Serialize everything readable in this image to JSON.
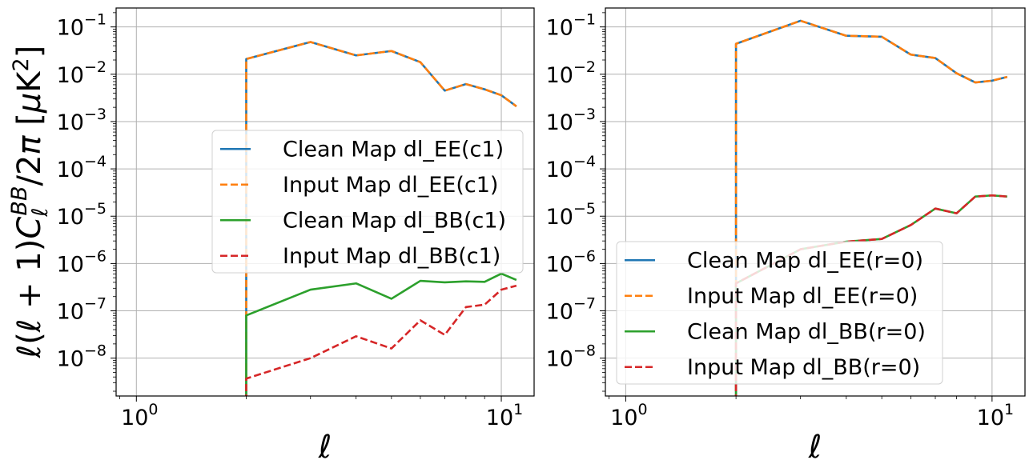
{
  "figure": {
    "ylabel": "ℓ(ℓ + 1)C_ℓ^BB/2π [μK²]"
  },
  "chart_data": [
    {
      "type": "line",
      "xscale": "log",
      "yscale": "log",
      "xlim": [
        0.88,
        12.3
      ],
      "ylim_exp": [
        -8.8,
        -0.6
      ],
      "xlabel": "ℓ",
      "ylabel": "ℓ(ℓ + 1)C_ℓ^BB/2π [μK²]",
      "grid": true,
      "legend_position": "center-right",
      "x_ticks": [
        {
          "value": 1,
          "base": "10",
          "exp": "0"
        },
        {
          "value": 10,
          "base": "10",
          "exp": "1"
        }
      ],
      "y_ticks": [
        {
          "exp_value": -1,
          "base": "10",
          "exp": "−1"
        },
        {
          "exp_value": -2,
          "base": "10",
          "exp": "−2"
        },
        {
          "exp_value": -3,
          "base": "10",
          "exp": "−3"
        },
        {
          "exp_value": -4,
          "base": "10",
          "exp": "−4"
        },
        {
          "exp_value": -5,
          "base": "10",
          "exp": "−5"
        },
        {
          "exp_value": -6,
          "base": "10",
          "exp": "−6"
        },
        {
          "exp_value": -7,
          "base": "10",
          "exp": "−7"
        },
        {
          "exp_value": -8,
          "base": "10",
          "exp": "−8"
        }
      ],
      "x": [
        2,
        3,
        4,
        5,
        6,
        7,
        8,
        9,
        10,
        11
      ],
      "series": [
        {
          "name": "Clean Map dl_EE(c1)",
          "color": "#1f77b4",
          "dash": "solid",
          "values": [
            0.021,
            0.048,
            0.025,
            0.031,
            0.018,
            0.0045,
            0.0062,
            0.0048,
            0.0036,
            0.0021
          ]
        },
        {
          "name": "Input Map dl_EE(c1)",
          "color": "#ff7f0e",
          "dash": "dashed",
          "values": [
            0.021,
            0.048,
            0.025,
            0.031,
            0.018,
            0.0045,
            0.0062,
            0.0048,
            0.0036,
            0.0021
          ]
        },
        {
          "name": "Clean Map dl_BB(c1)",
          "color": "#2ca02c",
          "dash": "solid",
          "values": [
            8e-08,
            2.8e-07,
            3.8e-07,
            1.8e-07,
            4.3e-07,
            4e-07,
            4.2e-07,
            4.1e-07,
            6.1e-07,
            4.5e-07
          ]
        },
        {
          "name": "Input Map dl_BB(c1)",
          "color": "#d62728",
          "dash": "dashed",
          "values": [
            3.7e-09,
            1e-08,
            2.9e-08,
            1.6e-08,
            6.3e-08,
            3.1e-08,
            1.2e-07,
            1.35e-07,
            2.8e-07,
            3.4e-07
          ]
        }
      ]
    },
    {
      "type": "line",
      "xscale": "log",
      "yscale": "log",
      "xlim": [
        0.88,
        12.3
      ],
      "ylim_exp": [
        -8.8,
        -0.6
      ],
      "xlabel": "ℓ",
      "grid": true,
      "legend_position": "lower-right",
      "x_ticks": [
        {
          "value": 1,
          "base": "10",
          "exp": "0"
        },
        {
          "value": 10,
          "base": "10",
          "exp": "1"
        }
      ],
      "y_ticks": [
        {
          "exp_value": -1,
          "base": "10",
          "exp": "−1"
        },
        {
          "exp_value": -2,
          "base": "10",
          "exp": "−2"
        },
        {
          "exp_value": -3,
          "base": "10",
          "exp": "−3"
        },
        {
          "exp_value": -4,
          "base": "10",
          "exp": "−4"
        },
        {
          "exp_value": -5,
          "base": "10",
          "exp": "−5"
        },
        {
          "exp_value": -6,
          "base": "10",
          "exp": "−6"
        },
        {
          "exp_value": -7,
          "base": "10",
          "exp": "−7"
        },
        {
          "exp_value": -8,
          "base": "10",
          "exp": "−8"
        }
      ],
      "x": [
        2,
        3,
        4,
        5,
        6,
        7,
        8,
        9,
        10,
        11
      ],
      "series": [
        {
          "name": "Clean Map dl_EE(r=0)",
          "color": "#1f77b4",
          "dash": "solid",
          "values": [
            0.044,
            0.135,
            0.065,
            0.062,
            0.026,
            0.022,
            0.0105,
            0.0067,
            0.0073,
            0.0088
          ]
        },
        {
          "name": "Input Map dl_EE(r=0)",
          "color": "#ff7f0e",
          "dash": "dashed",
          "values": [
            0.044,
            0.135,
            0.065,
            0.062,
            0.026,
            0.022,
            0.0105,
            0.0067,
            0.0073,
            0.0088
          ]
        },
        {
          "name": "Clean Map dl_BB(r=0)",
          "color": "#2ca02c",
          "dash": "solid",
          "values": [
            3.8e-07,
            2e-06,
            2.9e-06,
            3.3e-06,
            6.5e-06,
            1.45e-05,
            1.15e-05,
            2.6e-05,
            2.75e-05,
            2.6e-05
          ]
        },
        {
          "name": "Input Map dl_BB(r=0)",
          "color": "#d62728",
          "dash": "dashed",
          "values": [
            3.8e-07,
            2e-06,
            2.9e-06,
            3.3e-06,
            6.5e-06,
            1.45e-05,
            1.15e-05,
            2.6e-05,
            2.75e-05,
            2.6e-05
          ]
        }
      ]
    }
  ]
}
